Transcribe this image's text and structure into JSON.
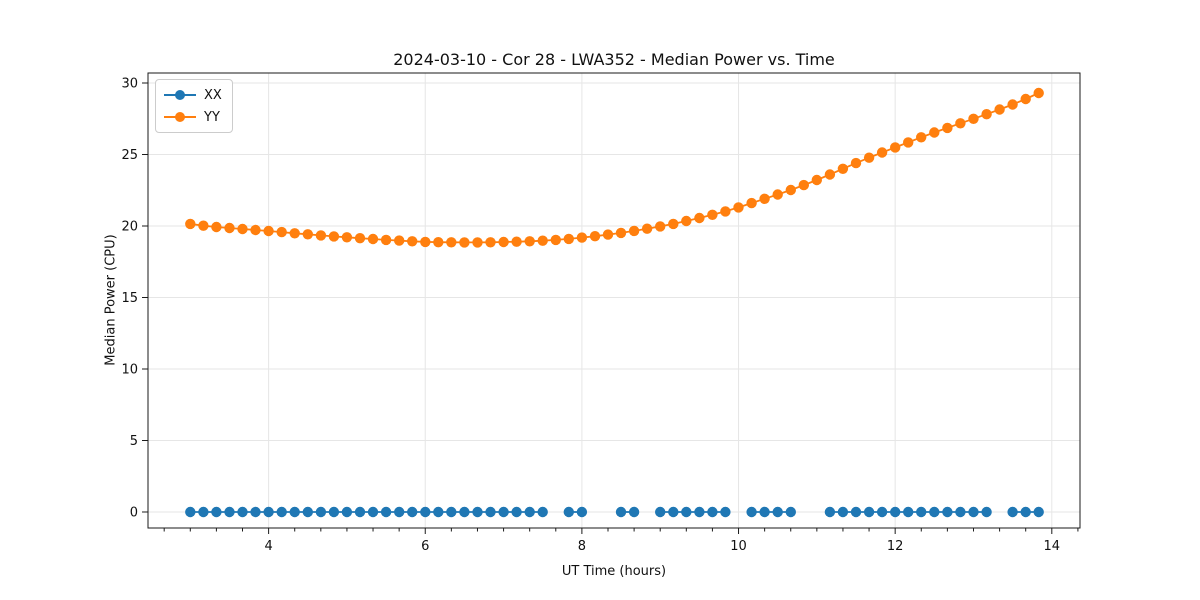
{
  "chart_data": {
    "type": "line",
    "title": "2024-03-10 - Cor 28 - LWA352 - Median Power vs. Time",
    "xlabel": "UT Time (hours)",
    "ylabel": "Median Power (CPU)",
    "xlim": [
      2.46,
      14.36
    ],
    "ylim": [
      -1.12,
      30.7
    ],
    "xticks": [
      4,
      6,
      8,
      10,
      12,
      14
    ],
    "yticks": [
      0,
      5,
      10,
      15,
      20,
      25,
      30
    ],
    "minor_xtick_step": 0.3333,
    "grid": true,
    "grid_color": "#e6e6e6",
    "legend_position": "upper-left",
    "series": [
      {
        "name": "XX",
        "color": "#1f77b4",
        "x": [
          3.0,
          3.167,
          3.333,
          3.5,
          3.667,
          3.833,
          4.0,
          4.167,
          4.333,
          4.5,
          4.667,
          4.833,
          5.0,
          5.167,
          5.333,
          5.5,
          5.667,
          5.833,
          6.0,
          6.167,
          6.333,
          6.5,
          6.667,
          6.833,
          7.0,
          7.167,
          7.333,
          7.5,
          7.833,
          8.0,
          8.5,
          8.667,
          9.0,
          9.167,
          9.333,
          9.5,
          9.667,
          9.833,
          10.167,
          10.333,
          10.5,
          10.667,
          11.167,
          11.333,
          11.5,
          11.667,
          11.833,
          12.0,
          12.167,
          12.333,
          12.5,
          12.667,
          12.833,
          13.0,
          13.167,
          13.5,
          13.667,
          13.833
        ],
        "y": [
          0,
          0,
          0,
          0,
          0,
          0,
          0,
          0,
          0,
          0,
          0,
          0,
          0,
          0,
          0,
          0,
          0,
          0,
          0,
          0,
          0,
          0,
          0,
          0,
          0,
          0,
          0,
          0,
          0,
          0,
          0,
          0,
          0,
          0,
          0,
          0,
          0,
          0,
          0,
          0,
          0,
          0,
          0,
          0,
          0,
          0,
          0,
          0,
          0,
          0,
          0,
          0,
          0,
          0,
          0,
          0,
          0,
          0
        ]
      },
      {
        "name": "YY",
        "color": "#ff7f0e",
        "x": [
          3.0,
          3.167,
          3.333,
          3.5,
          3.667,
          3.833,
          4.0,
          4.167,
          4.333,
          4.5,
          4.667,
          4.833,
          5.0,
          5.167,
          5.333,
          5.5,
          5.667,
          5.833,
          6.0,
          6.167,
          6.333,
          6.5,
          6.667,
          6.833,
          7.0,
          7.167,
          7.333,
          7.5,
          7.667,
          7.833,
          8.0,
          8.167,
          8.333,
          8.5,
          8.667,
          8.833,
          9.0,
          9.167,
          9.333,
          9.5,
          9.667,
          9.833,
          10.0,
          10.167,
          10.333,
          10.5,
          10.667,
          10.833,
          11.0,
          11.167,
          11.333,
          11.5,
          11.667,
          11.833,
          12.0,
          12.167,
          12.333,
          12.5,
          12.667,
          12.833,
          13.0,
          13.167,
          13.333,
          13.5,
          13.667,
          13.833
        ],
        "y": [
          20.15,
          20.02,
          19.93,
          19.86,
          19.79,
          19.72,
          19.65,
          19.57,
          19.49,
          19.42,
          19.34,
          19.27,
          19.21,
          19.15,
          19.09,
          19.03,
          18.98,
          18.93,
          18.89,
          18.87,
          18.86,
          18.85,
          18.85,
          18.86,
          18.88,
          18.9,
          18.93,
          18.97,
          19.03,
          19.1,
          19.19,
          19.29,
          19.4,
          19.52,
          19.66,
          19.81,
          19.97,
          20.15,
          20.35,
          20.56,
          20.78,
          21.02,
          21.3,
          21.6,
          21.9,
          22.2,
          22.52,
          22.86,
          23.22,
          23.6,
          24.0,
          24.4,
          24.78,
          25.14,
          25.5,
          25.85,
          26.2,
          26.54,
          26.86,
          27.18,
          27.5,
          27.82,
          28.15,
          28.5,
          28.88,
          29.3
        ]
      }
    ]
  }
}
